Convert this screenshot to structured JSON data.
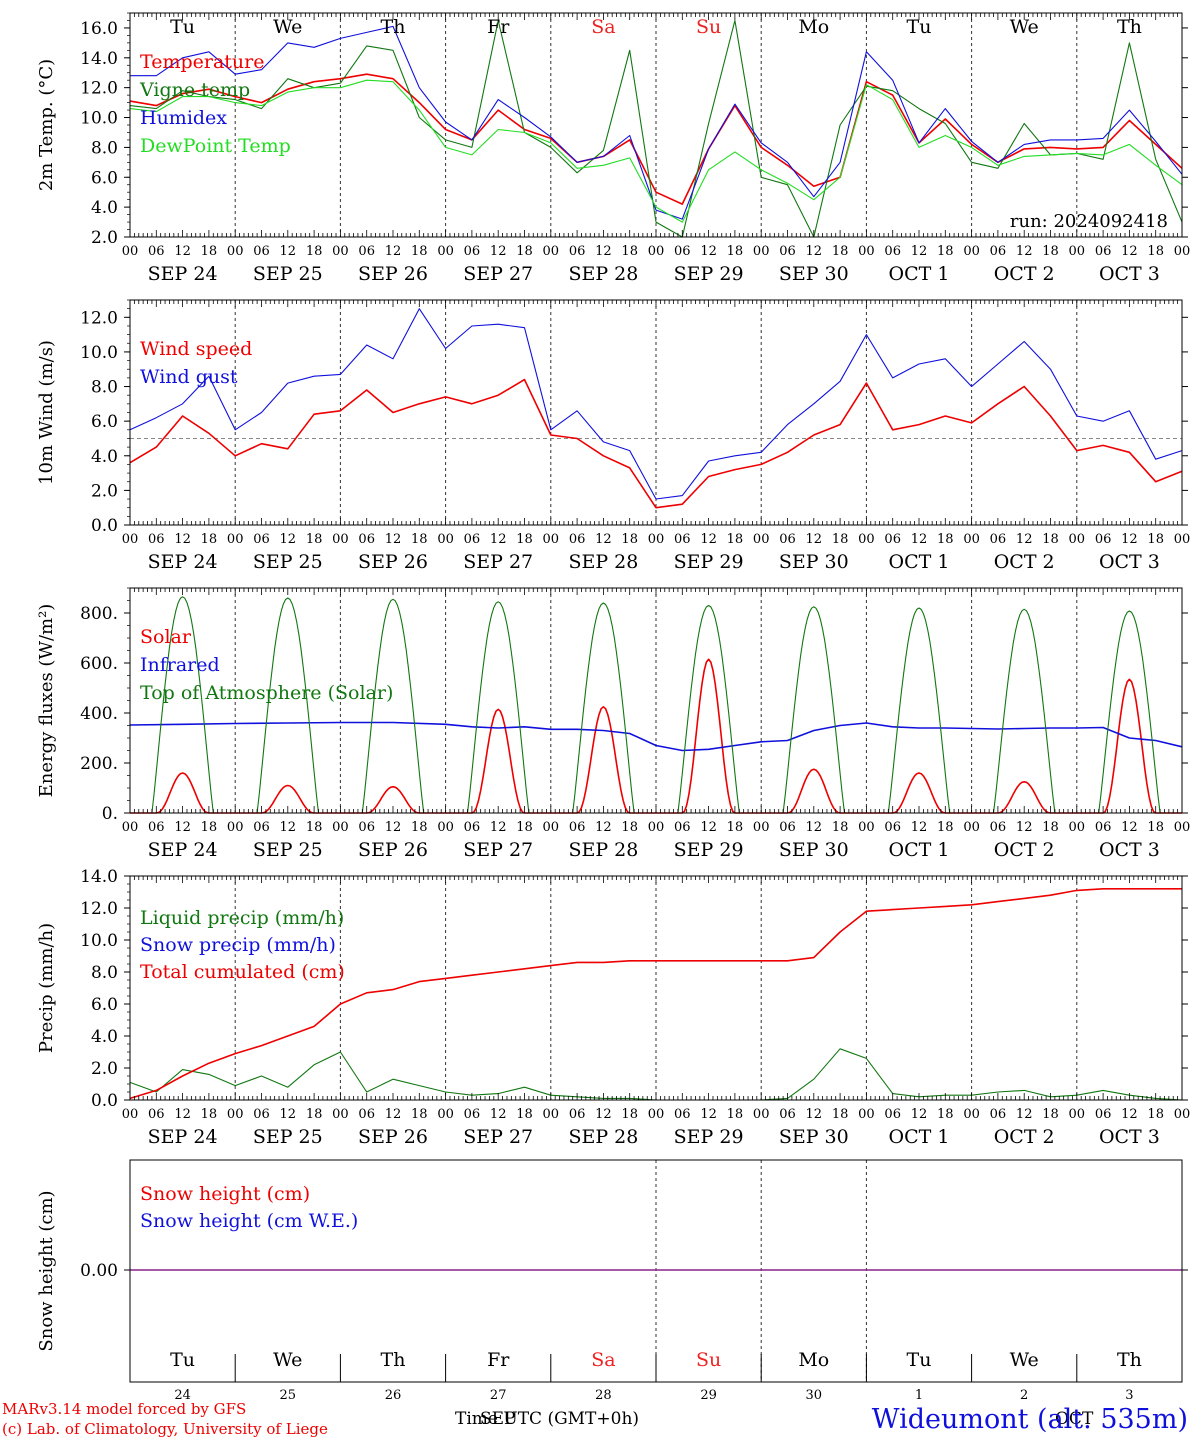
{
  "footer": {
    "model_line1": "MARv3.14 model forced by GFS",
    "model_line2": "(c) Lab. of Climatology, University of Liege",
    "time_label": "Time UTC (GMT+0h)",
    "station": "Wideumont (alt. 535m)",
    "bottom_month_left": "SEP",
    "bottom_month_right": "OCT"
  },
  "colors": {
    "red": "#ee0000",
    "green": "#117711",
    "blue": "#1010dd",
    "light_green": "#22dd22",
    "purple": "#882288",
    "weekend": "#ee2222",
    "grid": "#777777"
  },
  "days": {
    "names": [
      "Tu",
      "We",
      "Th",
      "Fr",
      "Sa",
      "Su",
      "Mo",
      "Tu",
      "We",
      "Th"
    ],
    "weekend": [
      false,
      false,
      false,
      false,
      true,
      true,
      false,
      false,
      false,
      false
    ],
    "dates": [
      "SEP 24",
      "SEP 25",
      "SEP 26",
      "SEP 27",
      "SEP 28",
      "SEP 29",
      "SEP 30",
      "OCT  1",
      "OCT  2",
      "OCT  3"
    ],
    "day_numbers": [
      "24",
      "25",
      "26",
      "27",
      "28",
      "29",
      "30",
      "1",
      "2",
      "3"
    ],
    "hour_ticks": [
      "00",
      "06",
      "12",
      "18"
    ],
    "final_tick": "00"
  },
  "chart_data": [
    {
      "type": "line",
      "ylabel": "2m Temp. (°C)",
      "ylim": [
        2.0,
        17.0
      ],
      "yticks": [
        "2.0",
        "4.0",
        "6.0",
        "8.0",
        "10.0",
        "12.0",
        "14.0",
        "16.0"
      ],
      "annotation": "run: 2024092418",
      "x_hours": [
        0,
        6,
        12,
        18,
        24,
        30,
        36,
        42,
        48,
        54,
        60,
        66,
        72,
        78,
        84,
        90,
        96,
        102,
        108,
        114,
        120,
        126,
        132,
        138,
        144,
        150,
        156,
        162,
        168,
        174,
        180,
        186,
        192,
        198,
        204,
        210,
        216,
        222,
        228,
        234,
        240
      ],
      "series": [
        {
          "name": "Temperature",
          "color": "#ee0000",
          "values": [
            11.1,
            10.8,
            11.6,
            11.9,
            11.4,
            11.0,
            11.9,
            12.4,
            12.6,
            12.9,
            12.6,
            11.0,
            9.2,
            8.5,
            10.5,
            9.2,
            8.6,
            7.0,
            7.4,
            8.5,
            5.0,
            4.2,
            7.9,
            10.8,
            8.0,
            6.8,
            5.4,
            6.0,
            12.4,
            11.5,
            8.3,
            9.9,
            8.2,
            7.0,
            7.9,
            8.0,
            7.9,
            8.0,
            9.8,
            8.2,
            6.6
          ]
        },
        {
          "name": "Vigne temp",
          "color": "#117711",
          "values": [
            10.8,
            10.6,
            11.8,
            11.4,
            11.2,
            10.6,
            12.6,
            12.0,
            12.3,
            14.8,
            14.5,
            10.0,
            8.5,
            8.0,
            16.5,
            9.0,
            8.0,
            6.3,
            7.8,
            14.5,
            3.0,
            1.0,
            9.6,
            16.5,
            6.0,
            5.5,
            1.5,
            9.5,
            12.1,
            11.8,
            10.6,
            9.6,
            7.0,
            6.6,
            9.6,
            7.5,
            7.6,
            7.2,
            15.0,
            7.2,
            3.0
          ]
        },
        {
          "name": "Humidex",
          "color": "#1010dd",
          "values": [
            12.8,
            12.8,
            14.0,
            14.4,
            12.9,
            13.2,
            15.0,
            14.7,
            15.3,
            15.7,
            16.1,
            12.0,
            9.7,
            8.5,
            11.2,
            10.0,
            8.7,
            7.0,
            7.4,
            8.8,
            3.8,
            3.2,
            7.9,
            10.9,
            8.3,
            7.0,
            4.7,
            7.0,
            14.4,
            12.5,
            8.3,
            10.6,
            8.4,
            7.0,
            8.2,
            8.5,
            8.5,
            8.6,
            10.5,
            8.4,
            6.2
          ]
        },
        {
          "name": "DewPoint Temp",
          "color": "#22dd22",
          "values": [
            10.6,
            10.4,
            11.4,
            11.4,
            11.0,
            10.8,
            11.7,
            12.0,
            12.0,
            12.5,
            12.4,
            10.5,
            8.0,
            7.5,
            9.2,
            9.0,
            8.3,
            6.6,
            6.8,
            7.3,
            4.0,
            3.0,
            6.5,
            7.7,
            6.5,
            5.6,
            4.5,
            6.0,
            12.2,
            11.2,
            8.0,
            8.8,
            8.0,
            6.8,
            7.4,
            7.5,
            7.6,
            7.5,
            8.2,
            6.8,
            5.5
          ]
        }
      ]
    },
    {
      "type": "line",
      "ylabel": "10m Wind (m/s)",
      "ylim": [
        0.0,
        13.0
      ],
      "yticks": [
        "0.0",
        "2.0",
        "4.0",
        "6.0",
        "8.0",
        "10.0",
        "12.0"
      ],
      "reference_line": 5.0,
      "x_hours": [
        0,
        6,
        12,
        18,
        24,
        30,
        36,
        42,
        48,
        54,
        60,
        66,
        72,
        78,
        84,
        90,
        96,
        102,
        108,
        114,
        120,
        126,
        132,
        138,
        144,
        150,
        156,
        162,
        168,
        174,
        180,
        186,
        192,
        198,
        204,
        210,
        216,
        222,
        228,
        234,
        240
      ],
      "series": [
        {
          "name": "Wind speed",
          "color": "#ee0000",
          "values": [
            3.6,
            4.5,
            6.3,
            5.3,
            4.0,
            4.7,
            4.4,
            6.4,
            6.6,
            7.8,
            6.5,
            7.0,
            7.4,
            7.0,
            7.5,
            8.4,
            5.2,
            5.0,
            4.0,
            3.3,
            1.0,
            1.2,
            2.8,
            3.2,
            3.5,
            4.2,
            5.2,
            5.8,
            8.2,
            5.5,
            5.8,
            6.3,
            5.9,
            7.0,
            8.0,
            6.3,
            4.3,
            4.6,
            4.2,
            2.5,
            3.1
          ]
        },
        {
          "name": "Wind gust",
          "color": "#1010dd",
          "values": [
            5.5,
            6.2,
            7.0,
            8.6,
            5.5,
            6.5,
            8.2,
            8.6,
            8.7,
            10.4,
            9.6,
            12.5,
            10.2,
            11.5,
            11.6,
            11.4,
            5.5,
            6.6,
            4.8,
            4.3,
            1.5,
            1.7,
            3.7,
            4.0,
            4.2,
            5.8,
            7.0,
            8.3,
            11.0,
            8.5,
            9.3,
            9.6,
            8.0,
            9.3,
            10.6,
            9.0,
            6.3,
            6.0,
            6.6,
            3.8,
            4.3
          ]
        }
      ]
    },
    {
      "type": "line",
      "ylabel": "Energy fluxes (W/m²)",
      "ylim": [
        0,
        900
      ],
      "yticks": [
        "0.",
        "200.",
        "400.",
        "600.",
        "800."
      ],
      "series": [
        {
          "name": "Solar",
          "color": "#ee0000",
          "day_peaks": [
            160,
            110,
            105,
            415,
            425,
            615,
            175,
            160,
            125,
            535
          ]
        },
        {
          "name": "Infrared",
          "color": "#1010dd",
          "x_hours": [
            0,
            12,
            24,
            36,
            48,
            60,
            72,
            78,
            84,
            90,
            96,
            102,
            108,
            114,
            120,
            126,
            132,
            138,
            144,
            150,
            156,
            162,
            168,
            174,
            180,
            186,
            192,
            198,
            204,
            210,
            216,
            222,
            228,
            234,
            240
          ],
          "values": [
            352,
            355,
            358,
            360,
            362,
            362,
            355,
            345,
            340,
            345,
            335,
            335,
            330,
            318,
            270,
            250,
            255,
            270,
            285,
            290,
            330,
            350,
            360,
            345,
            340,
            340,
            338,
            336,
            338,
            340,
            340,
            342,
            300,
            290,
            265
          ]
        },
        {
          "name": "Top of Atmosphere (Solar)",
          "color": "#117711",
          "day_peaks": [
            865,
            860,
            855,
            845,
            840,
            830,
            825,
            820,
            815,
            808
          ]
        }
      ]
    },
    {
      "type": "line",
      "ylabel": "Precip (mm/h)",
      "ylim": [
        0.0,
        14.0
      ],
      "yticks": [
        "0.0",
        "2.0",
        "4.0",
        "6.0",
        "8.0",
        "10.0",
        "12.0",
        "14.0"
      ],
      "x_hours": [
        0,
        6,
        12,
        18,
        24,
        30,
        36,
        42,
        48,
        54,
        60,
        66,
        72,
        78,
        84,
        90,
        96,
        102,
        108,
        114,
        120,
        126,
        132,
        138,
        144,
        150,
        156,
        162,
        168,
        174,
        180,
        186,
        192,
        198,
        204,
        210,
        216,
        222,
        228,
        234,
        240
      ],
      "series": [
        {
          "name": "Liquid precip (mm/h)",
          "color": "#117711",
          "values": [
            1.1,
            0.5,
            1.9,
            1.6,
            0.9,
            1.5,
            0.8,
            2.2,
            3.0,
            0.5,
            1.3,
            0.9,
            0.5,
            0.3,
            0.4,
            0.8,
            0.3,
            0.2,
            0.1,
            0.1,
            0.0,
            0.0,
            0.0,
            0.0,
            0.0,
            0.1,
            1.3,
            3.2,
            2.6,
            0.4,
            0.2,
            0.3,
            0.3,
            0.5,
            0.6,
            0.2,
            0.3,
            0.6,
            0.3,
            0.1,
            0.0
          ]
        },
        {
          "name": "Snow precip (mm/h)",
          "color": "#1010dd",
          "values": []
        },
        {
          "name": "Total cumulated (cm)",
          "color": "#ee0000",
          "values": [
            0.1,
            0.6,
            1.5,
            2.3,
            2.9,
            3.4,
            4.0,
            4.6,
            6.0,
            6.7,
            6.9,
            7.4,
            7.6,
            7.8,
            8.0,
            8.2,
            8.4,
            8.6,
            8.6,
            8.7,
            8.7,
            8.7,
            8.7,
            8.7,
            8.7,
            8.7,
            8.9,
            10.5,
            11.8,
            11.9,
            12.0,
            12.1,
            12.2,
            12.4,
            12.6,
            12.8,
            13.1,
            13.2,
            13.2,
            13.2,
            13.2
          ]
        }
      ]
    },
    {
      "type": "line",
      "ylabel": "Snow height (cm)",
      "yticks": [
        "0.00"
      ],
      "series": [
        {
          "name": "Snow height (cm)",
          "color": "#ee0000",
          "values": [
            0.0,
            0.0
          ]
        },
        {
          "name": "Snow height (cm W.E.)",
          "color": "#1010dd",
          "values": [
            0.0,
            0.0
          ]
        }
      ]
    }
  ]
}
